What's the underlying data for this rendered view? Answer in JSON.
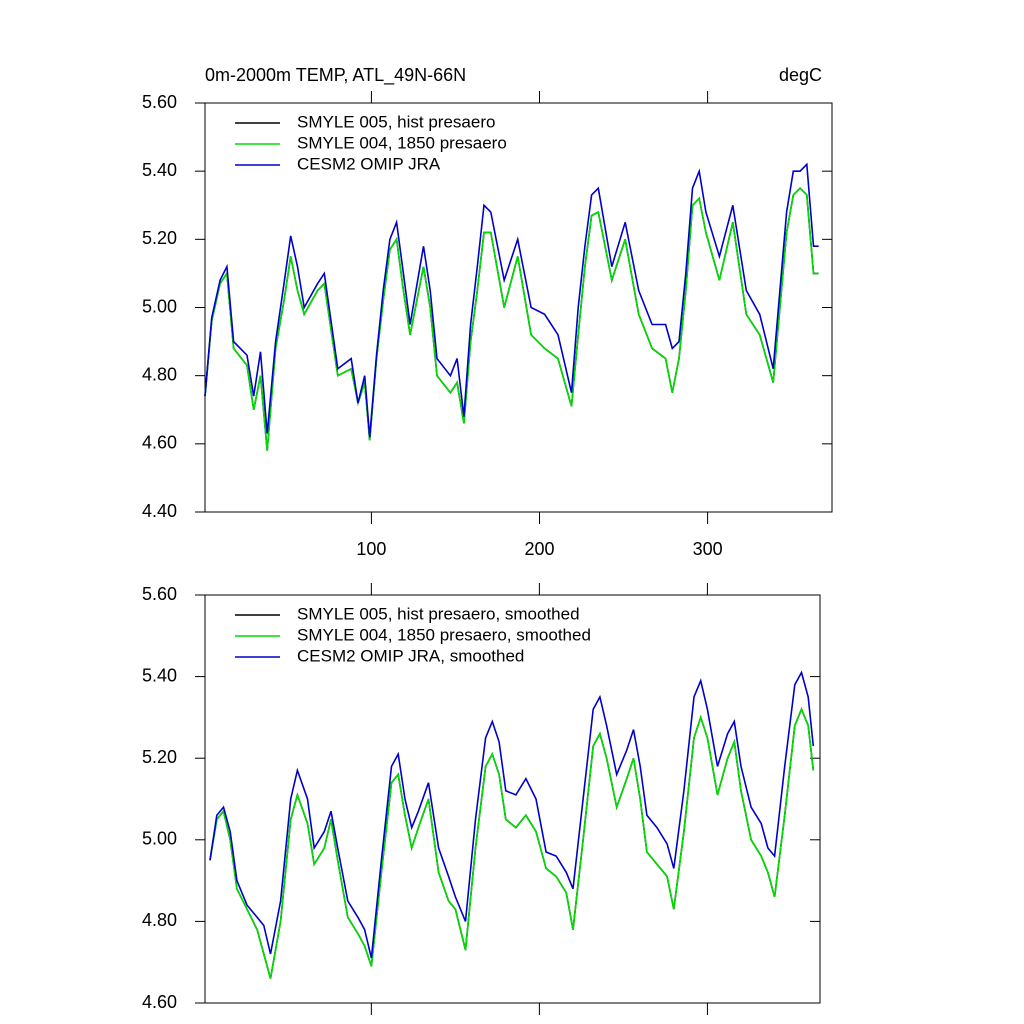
{
  "chart_data": [
    {
      "type": "line",
      "title": "0m-2000m TEMP, ATL_49N-66N",
      "units": "degC",
      "x": [
        1,
        5,
        10,
        14,
        18,
        26,
        30,
        34,
        38,
        43,
        48,
        52,
        56,
        60,
        68,
        72,
        80,
        88,
        92,
        96,
        99,
        103,
        107,
        111,
        115,
        119,
        123,
        131,
        135,
        139,
        147,
        151,
        155,
        159,
        163,
        167,
        171,
        179,
        187,
        195,
        203,
        211,
        219,
        223,
        227,
        231,
        235,
        243,
        251,
        259,
        267,
        275,
        279,
        283,
        287,
        291,
        295,
        299,
        307,
        315,
        323,
        331,
        339,
        343,
        347,
        351,
        355,
        359,
        363,
        366
      ],
      "xlim": [
        1,
        374
      ],
      "ylim": [
        4.4,
        5.6
      ],
      "xticks": [
        100,
        200,
        300
      ],
      "yticks": [
        {
          "value": 4.4,
          "label": "4.40"
        },
        {
          "value": 4.6,
          "label": "4.60"
        },
        {
          "value": 4.8,
          "label": "4.80"
        },
        {
          "value": 5.0,
          "label": "5.00"
        },
        {
          "value": 5.2,
          "label": "5.20"
        },
        {
          "value": 5.4,
          "label": "5.40"
        },
        {
          "value": 5.6,
          "label": "5.60"
        }
      ],
      "xtick_labels": true,
      "legend": "upper left",
      "series": [
        {
          "name": "SMYLE 005, hist presaero",
          "color": "#000000",
          "values": [
            4.74,
            4.96,
            5.07,
            5.1,
            4.88,
            4.83,
            4.7,
            4.8,
            4.58,
            4.88,
            5.02,
            5.15,
            5.05,
            4.98,
            5.05,
            5.07,
            4.8,
            4.82,
            4.72,
            4.78,
            4.61,
            4.85,
            5.02,
            5.17,
            5.2,
            5.05,
            4.92,
            5.12,
            5.0,
            4.8,
            4.75,
            4.78,
            4.66,
            4.9,
            5.05,
            5.22,
            5.22,
            5.0,
            5.15,
            4.92,
            4.88,
            4.85,
            4.71,
            4.92,
            5.12,
            5.27,
            5.28,
            5.08,
            5.2,
            4.98,
            4.88,
            4.85,
            4.75,
            4.85,
            5.05,
            5.3,
            5.32,
            5.22,
            5.08,
            5.25,
            4.98,
            4.92,
            4.78,
            5.0,
            5.22,
            5.33,
            5.35,
            5.33,
            5.1,
            5.1
          ]
        },
        {
          "name": "SMYLE 004, 1850 presaero",
          "color": "#00dd00",
          "values": [
            4.74,
            4.96,
            5.07,
            5.1,
            4.88,
            4.83,
            4.7,
            4.8,
            4.58,
            4.88,
            5.02,
            5.15,
            5.05,
            4.98,
            5.05,
            5.07,
            4.8,
            4.82,
            4.72,
            4.78,
            4.61,
            4.85,
            5.02,
            5.17,
            5.2,
            5.05,
            4.92,
            5.12,
            5.0,
            4.8,
            4.75,
            4.78,
            4.66,
            4.9,
            5.05,
            5.22,
            5.22,
            5.0,
            5.15,
            4.92,
            4.88,
            4.85,
            4.71,
            4.92,
            5.12,
            5.27,
            5.28,
            5.08,
            5.2,
            4.98,
            4.88,
            4.85,
            4.75,
            4.85,
            5.05,
            5.3,
            5.32,
            5.22,
            5.08,
            5.25,
            4.98,
            4.92,
            4.78,
            5.0,
            5.22,
            5.33,
            5.35,
            5.33,
            5.1,
            5.1
          ]
        },
        {
          "name": "CESM2 OMIP JRA",
          "color": "#0000cc",
          "values": [
            4.74,
            4.97,
            5.08,
            5.12,
            4.9,
            4.86,
            4.74,
            4.87,
            4.63,
            4.9,
            5.07,
            5.21,
            5.12,
            5.0,
            5.07,
            5.1,
            4.82,
            4.85,
            4.72,
            4.8,
            4.62,
            4.86,
            5.05,
            5.2,
            5.25,
            5.1,
            4.95,
            5.18,
            5.05,
            4.85,
            4.8,
            4.85,
            4.68,
            4.95,
            5.12,
            5.3,
            5.28,
            5.08,
            5.2,
            5.0,
            4.98,
            4.92,
            4.75,
            5.0,
            5.18,
            5.33,
            5.35,
            5.12,
            5.25,
            5.05,
            4.95,
            4.95,
            4.88,
            4.9,
            5.1,
            5.35,
            5.4,
            5.28,
            5.15,
            5.3,
            5.05,
            4.98,
            4.82,
            5.05,
            5.28,
            5.4,
            5.4,
            5.42,
            5.18,
            5.18
          ]
        }
      ]
    },
    {
      "type": "line",
      "x": [
        4,
        8,
        12,
        16,
        20,
        26,
        32,
        36,
        40,
        46,
        52,
        56,
        62,
        66,
        72,
        76,
        80,
        86,
        92,
        96,
        100,
        106,
        112,
        116,
        120,
        124,
        128,
        134,
        140,
        146,
        150,
        156,
        162,
        168,
        172,
        176,
        180,
        186,
        192,
        198,
        204,
        210,
        216,
        220,
        226,
        232,
        236,
        240,
        246,
        252,
        256,
        260,
        264,
        270,
        276,
        280,
        286,
        292,
        296,
        300,
        306,
        312,
        316,
        320,
        326,
        332,
        336,
        340,
        346,
        352,
        356,
        360,
        363
      ],
      "xlim": [
        1,
        367
      ],
      "ylim": [
        4.6,
        5.6
      ],
      "xticks": [
        100,
        200,
        300
      ],
      "yticks": [
        {
          "value": 4.6,
          "label": "4.60"
        },
        {
          "value": 4.8,
          "label": "4.80"
        },
        {
          "value": 5.0,
          "label": "5.00"
        },
        {
          "value": 5.2,
          "label": "5.20"
        },
        {
          "value": 5.4,
          "label": "5.40"
        },
        {
          "value": 5.6,
          "label": "5.60"
        }
      ],
      "xtick_labels": false,
      "legend": "upper left",
      "series": [
        {
          "name": "SMYLE 005, hist presaero, smoothed",
          "color": "#000000",
          "values": [
            4.95,
            5.05,
            5.07,
            5.0,
            4.88,
            4.83,
            4.78,
            4.72,
            4.66,
            4.8,
            5.05,
            5.11,
            5.04,
            4.94,
            4.98,
            5.05,
            4.95,
            4.81,
            4.77,
            4.74,
            4.69,
            4.92,
            5.14,
            5.16,
            5.06,
            4.98,
            5.03,
            5.1,
            4.92,
            4.85,
            4.83,
            4.73,
            4.98,
            5.18,
            5.21,
            5.16,
            5.05,
            5.03,
            5.06,
            5.02,
            4.93,
            4.91,
            4.87,
            4.78,
            5.0,
            5.23,
            5.26,
            5.2,
            5.08,
            5.15,
            5.2,
            5.1,
            4.97,
            4.94,
            4.91,
            4.83,
            5.02,
            5.25,
            5.3,
            5.25,
            5.11,
            5.2,
            5.24,
            5.12,
            5.0,
            4.96,
            4.92,
            4.86,
            5.06,
            5.28,
            5.32,
            5.28,
            5.17
          ]
        },
        {
          "name": "SMYLE 004, 1850 presaero, smoothed",
          "color": "#00dd00",
          "values": [
            4.95,
            5.05,
            5.07,
            5.0,
            4.88,
            4.83,
            4.78,
            4.72,
            4.66,
            4.8,
            5.05,
            5.11,
            5.04,
            4.94,
            4.98,
            5.05,
            4.95,
            4.81,
            4.77,
            4.74,
            4.69,
            4.92,
            5.14,
            5.16,
            5.06,
            4.98,
            5.03,
            5.1,
            4.92,
            4.85,
            4.83,
            4.73,
            4.98,
            5.18,
            5.21,
            5.16,
            5.05,
            5.03,
            5.06,
            5.02,
            4.93,
            4.91,
            4.87,
            4.78,
            5.0,
            5.23,
            5.26,
            5.2,
            5.08,
            5.15,
            5.2,
            5.1,
            4.97,
            4.94,
            4.91,
            4.83,
            5.02,
            5.25,
            5.3,
            5.25,
            5.11,
            5.2,
            5.24,
            5.12,
            5.0,
            4.96,
            4.92,
            4.86,
            5.06,
            5.28,
            5.32,
            5.28,
            5.17
          ]
        },
        {
          "name": "CESM2 OMIP JRA, smoothed",
          "color": "#0000cc",
          "values": [
            4.95,
            5.06,
            5.08,
            5.02,
            4.9,
            4.84,
            4.81,
            4.79,
            4.72,
            4.85,
            5.1,
            5.17,
            5.1,
            4.98,
            5.02,
            5.07,
            4.98,
            4.85,
            4.81,
            4.78,
            4.71,
            4.95,
            5.18,
            5.21,
            5.1,
            5.03,
            5.07,
            5.14,
            4.98,
            4.91,
            4.86,
            4.8,
            5.05,
            5.25,
            5.29,
            5.24,
            5.12,
            5.11,
            5.15,
            5.1,
            4.97,
            4.96,
            4.92,
            4.88,
            5.1,
            5.32,
            5.35,
            5.28,
            5.16,
            5.22,
            5.27,
            5.18,
            5.06,
            5.03,
            4.99,
            4.93,
            5.12,
            5.35,
            5.39,
            5.32,
            5.18,
            5.26,
            5.29,
            5.18,
            5.08,
            5.04,
            4.98,
            4.96,
            5.18,
            5.38,
            5.41,
            5.35,
            5.23
          ]
        }
      ]
    }
  ]
}
